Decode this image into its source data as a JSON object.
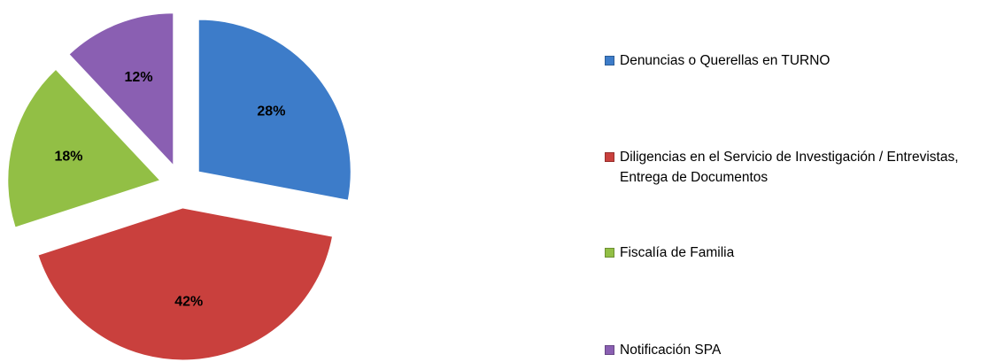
{
  "chart_data": {
    "type": "pie",
    "categories": [
      "Denuncias o Querellas en TURNO",
      "Diligencias en el Servicio de Investigación / Entrevistas, Entrega de Documentos",
      "Fiscalía de Familia",
      "Notificación SPA"
    ],
    "values": [
      28,
      42,
      18,
      12
    ],
    "value_labels": [
      "28%",
      "42%",
      "18%",
      "12%"
    ],
    "colors": [
      "#3d7cc9",
      "#c9403d",
      "#92bf45",
      "#8a5fb2"
    ],
    "legend": "right"
  }
}
